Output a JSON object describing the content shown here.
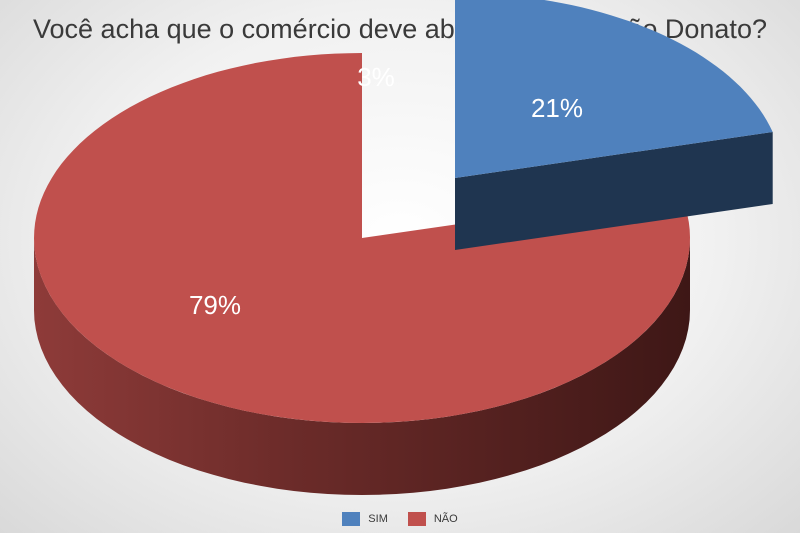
{
  "chart_data": {
    "type": "pie",
    "title": "Você acha que o comércio deve abrir no Dia de São Donato?",
    "slices": [
      {
        "name": "SIM",
        "value": 21,
        "label": "21%",
        "color": "#4f81bd",
        "side_color": "#1f3550"
      },
      {
        "name": "NÃO",
        "value": 79,
        "label": "79%",
        "color": "#c0504d",
        "side_color": "#5a1f1d"
      }
    ],
    "extra_labels": [
      {
        "label": "3%",
        "color": "#ffffff"
      }
    ],
    "legend": {
      "position": "bottom",
      "entries": [
        "SIM",
        "NÃO"
      ]
    },
    "style": "3d-exploded"
  }
}
